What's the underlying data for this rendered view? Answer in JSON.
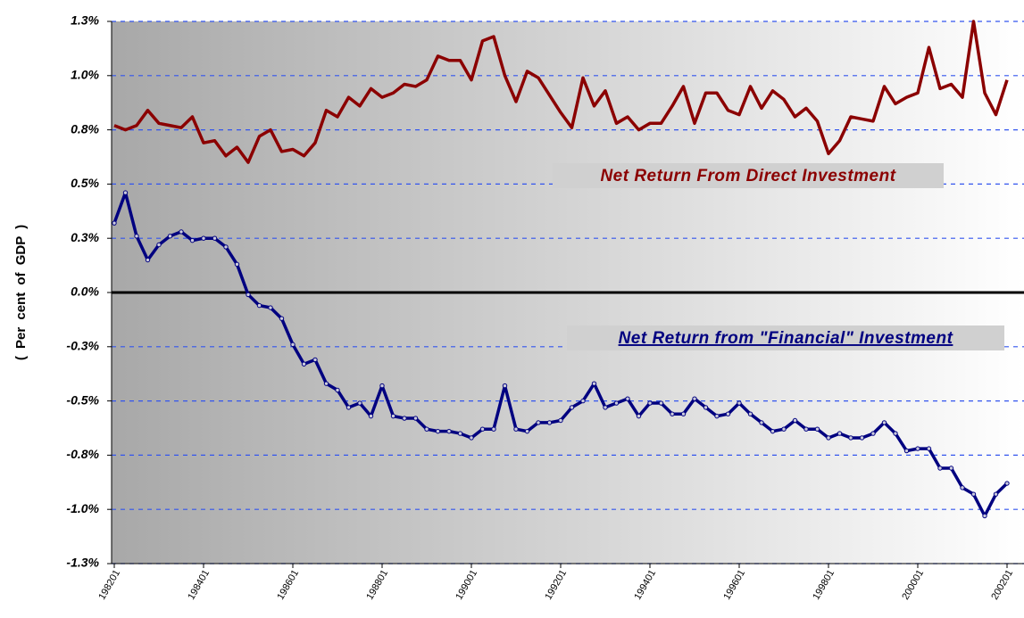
{
  "chart_data": {
    "type": "line",
    "y_label": "( Per cent of GDP )",
    "categories": [
      "198201",
      null,
      null,
      null,
      null,
      null,
      null,
      null,
      "198401",
      null,
      null,
      null,
      null,
      null,
      null,
      null,
      "198601",
      null,
      null,
      null,
      null,
      null,
      null,
      null,
      "198801",
      null,
      null,
      null,
      null,
      null,
      null,
      null,
      "199001",
      null,
      null,
      null,
      null,
      null,
      null,
      null,
      "199201",
      null,
      null,
      null,
      null,
      null,
      null,
      null,
      "199401",
      null,
      null,
      null,
      null,
      null,
      null,
      null,
      "199601",
      null,
      null,
      null,
      null,
      null,
      null,
      null,
      "199801",
      null,
      null,
      null,
      null,
      null,
      null,
      null,
      "200001",
      null,
      null,
      null,
      null,
      null,
      null,
      null,
      "200201"
    ],
    "series": [
      {
        "name": "Net Return From Direct Investment",
        "color": "#8b0000",
        "markers": false,
        "values": [
          0.77,
          0.75,
          0.77,
          0.84,
          0.78,
          0.77,
          0.76,
          0.81,
          0.69,
          0.7,
          0.63,
          0.67,
          0.6,
          0.72,
          0.75,
          0.65,
          0.66,
          0.63,
          0.69,
          0.84,
          0.81,
          0.9,
          0.86,
          0.94,
          0.9,
          0.92,
          0.96,
          0.95,
          0.98,
          1.09,
          1.07,
          1.07,
          0.98,
          1.16,
          1.18,
          1.0,
          0.88,
          1.02,
          0.99,
          0.91,
          0.83,
          0.76,
          0.99,
          0.86,
          0.93,
          0.78,
          0.81,
          0.75,
          0.78,
          0.78,
          0.86,
          0.95,
          0.78,
          0.92,
          0.92,
          0.84,
          0.82,
          0.95,
          0.85,
          0.93,
          0.89,
          0.81,
          0.85,
          0.79,
          0.64,
          0.7,
          0.81,
          0.8,
          0.79,
          0.95,
          0.87,
          0.9,
          0.92,
          1.13,
          0.94,
          0.96,
          0.9,
          1.25,
          0.92,
          0.82,
          0.98
        ]
      },
      {
        "name": "Net Return from \"Financial\" Investment",
        "color": "#000080",
        "markers": true,
        "values": [
          0.32,
          0.46,
          0.26,
          0.15,
          0.22,
          0.26,
          0.28,
          0.24,
          0.25,
          0.25,
          0.21,
          0.13,
          -0.01,
          -0.06,
          -0.07,
          -0.12,
          -0.24,
          -0.33,
          -0.31,
          -0.42,
          -0.45,
          -0.53,
          -0.51,
          -0.57,
          -0.43,
          -0.57,
          -0.58,
          -0.58,
          -0.63,
          -0.64,
          -0.64,
          -0.65,
          -0.67,
          -0.63,
          -0.63,
          -0.43,
          -0.63,
          -0.64,
          -0.6,
          -0.6,
          -0.59,
          -0.53,
          -0.5,
          -0.42,
          -0.53,
          -0.51,
          -0.49,
          -0.57,
          -0.51,
          -0.51,
          -0.56,
          -0.56,
          -0.49,
          -0.53,
          -0.57,
          -0.56,
          -0.51,
          -0.56,
          -0.6,
          -0.64,
          -0.63,
          -0.59,
          -0.63,
          -0.63,
          -0.67,
          -0.65,
          -0.67,
          -0.67,
          -0.65,
          -0.6,
          -0.65,
          -0.73,
          -0.72,
          -0.72,
          -0.81,
          -0.81,
          -0.9,
          -0.93,
          -1.03,
          -0.93,
          -0.88
        ]
      }
    ],
    "ylim": [
      -1.25,
      1.25
    ],
    "yticks": [
      {
        "value": -1.25,
        "label": "-1.3%"
      },
      {
        "value": -1.0,
        "label": "-1.0%"
      },
      {
        "value": -0.75,
        "label": "-0.8%"
      },
      {
        "value": -0.5,
        "label": "-0.5%"
      },
      {
        "value": -0.25,
        "label": "-0.3%"
      },
      {
        "value": 0,
        "label": "0.0%"
      },
      {
        "value": 0.25,
        "label": "0.3%"
      },
      {
        "value": 0.5,
        "label": "0.5%"
      },
      {
        "value": 0.75,
        "label": "0.8%"
      },
      {
        "value": 1.0,
        "label": "1.0%"
      },
      {
        "value": 1.25,
        "label": "1.3%"
      }
    ],
    "grid": true
  }
}
